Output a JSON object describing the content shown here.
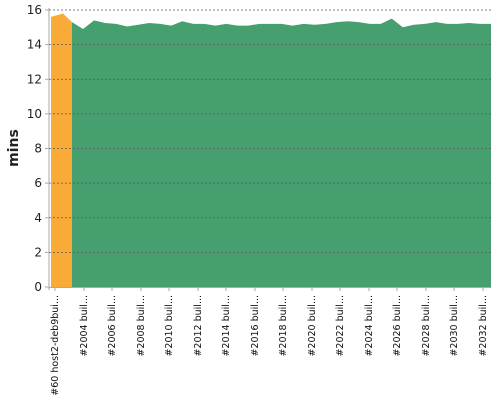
{
  "chart_data": {
    "type": "area",
    "title": "",
    "xlabel": "",
    "ylabel": "mins",
    "ylim": [
      0,
      16
    ],
    "yticks": [
      0,
      2,
      4,
      6,
      8,
      10,
      12,
      14,
      16
    ],
    "grid": true,
    "legend": "none",
    "x_tick_labels": [
      "#60 host2-deb9bui...",
      "#2004 buil...",
      "#2006 buil...",
      "#2008 buil...",
      "#2010 buil...",
      "#2012 buil...",
      "#2014 buil...",
      "#2016 buil...",
      "#2018 buil...",
      "#2020 buil...",
      "#2022 buil...",
      "#2024 buil...",
      "#2026 buil...",
      "#2028 buil...",
      "#2030 buil...",
      "#2032 buil..."
    ],
    "series": [
      {
        "color": "#faab37",
        "values": [
          15.6,
          15.8
        ]
      },
      {
        "color": "#469f6e",
        "values": [
          15.3,
          14.9,
          15.4,
          15.25,
          15.2,
          15.05,
          15.15,
          15.25,
          15.2,
          15.1,
          15.35,
          15.2,
          15.2,
          15.1,
          15.2,
          15.1,
          15.1,
          15.2,
          15.2,
          15.2,
          15.1,
          15.2,
          15.15,
          15.2,
          15.3,
          15.35,
          15.3,
          15.2,
          15.2,
          15.5,
          15.0,
          15.15,
          15.2,
          15.3,
          15.2,
          15.2,
          15.25,
          15.2,
          15.2
        ]
      }
    ],
    "colors": {
      "grid": "#555555",
      "axis": "#aaaaaa"
    }
  }
}
